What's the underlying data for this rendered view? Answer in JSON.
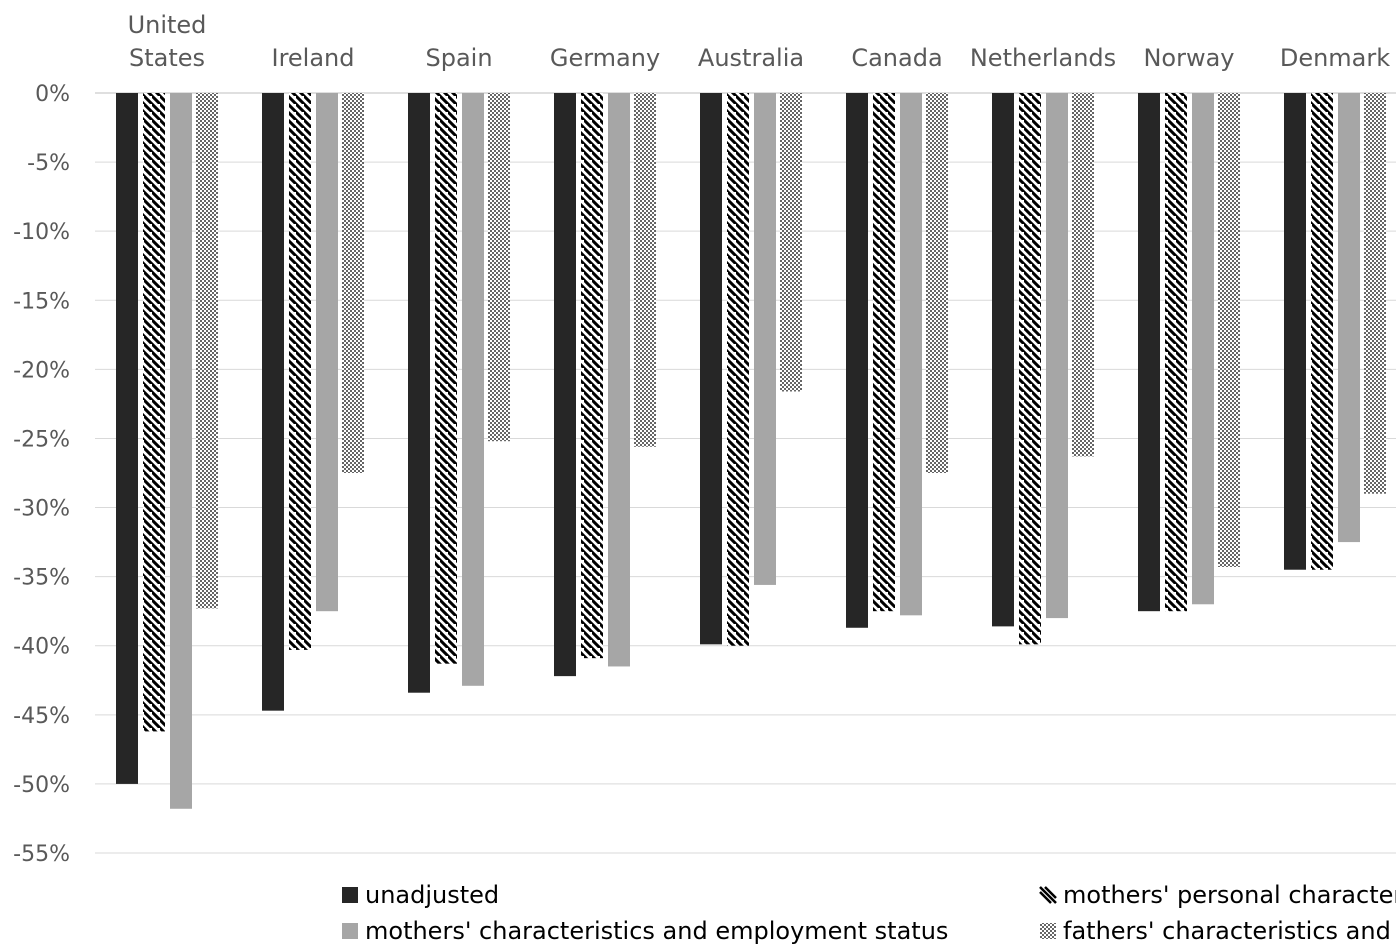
{
  "chart_data": {
    "type": "bar",
    "title": "",
    "xlabel": "",
    "ylabel": "",
    "ylim": [
      -55,
      0
    ],
    "yticks": [
      0,
      -5,
      -10,
      -15,
      -20,
      -25,
      -30,
      -35,
      -40,
      -45,
      -50,
      -55
    ],
    "ytick_labels": [
      "0%",
      "-5%",
      "-10%",
      "-15%",
      "-20%",
      "-25%",
      "-30%",
      "-35%",
      "-40%",
      "-45%",
      "-50%",
      "-55%"
    ],
    "x_axis_position": "top",
    "grid": true,
    "legend_position": "bottom",
    "categories": [
      [
        "United",
        "States"
      ],
      [
        "Ireland"
      ],
      [
        "Spain"
      ],
      [
        "Germany"
      ],
      [
        "Australia"
      ],
      [
        "Canada"
      ],
      [
        "Netherlands"
      ],
      [
        "Norway"
      ],
      [
        "Denmark"
      ]
    ],
    "series": [
      {
        "name": "unadjusted",
        "pattern": "solid",
        "color": "#262626",
        "values": [
          -50.0,
          -44.7,
          -43.4,
          -42.2,
          -39.9,
          -38.7,
          -38.6,
          -37.5,
          -34.5
        ]
      },
      {
        "name": "mothers' personal characteristics",
        "pattern": "diagonal-stripes",
        "color": "#000000",
        "values": [
          -46.2,
          -40.3,
          -41.3,
          -40.9,
          -40.0,
          -37.5,
          -39.9,
          -37.5,
          -34.5
        ]
      },
      {
        "name": "mothers' characteristics and employment status",
        "pattern": "solid",
        "color": "#a6a6a6",
        "values": [
          -51.8,
          -37.5,
          -42.9,
          -41.5,
          -35.6,
          -37.8,
          -38.0,
          -37.0,
          -32.5
        ]
      },
      {
        "name": "fathers' characteristics and employment status",
        "pattern": "checkered",
        "color": "#7f7f7f",
        "values": [
          -37.3,
          -27.5,
          -25.2,
          -25.6,
          -21.6,
          -27.5,
          -26.3,
          -34.3,
          -29.0
        ]
      }
    ],
    "legend_display_text": [
      "unadjusted",
      "mothers' personal characteris",
      "mothers' characteristics and employment status",
      "fathers' characteristics and er"
    ]
  }
}
